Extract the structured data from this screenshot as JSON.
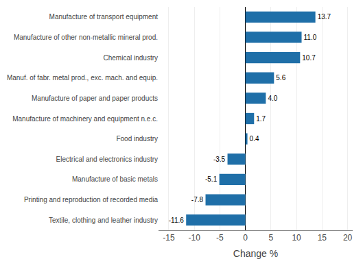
{
  "chart_data": {
    "type": "bar",
    "orientation": "horizontal",
    "categories": [
      "Textile, clothing and leather industry",
      "Printing and reproduction of recorded media",
      "Manufacture of basic metals",
      "Electrical and electronics industry",
      "Food industry",
      "Manufacture of machinery and equipment n.e.c.",
      "Manufacture of paper and paper products",
      "Manuf. of fabr. metal prod., exc. mach. and equip.",
      "Chemical industry",
      "Manufacture of other non-metallic mineral prod.",
      "Manufacture of transport equipment"
    ],
    "values": [
      -11.6,
      -7.8,
      -5.1,
      -3.5,
      0.4,
      1.7,
      4.0,
      5.6,
      10.7,
      11.0,
      13.7
    ],
    "value_labels": [
      "-11.6",
      "-7.8",
      "-5.1",
      "-3.5",
      "0.4",
      "1.7",
      "4.0",
      "5.6",
      "10.7",
      "11.0",
      "13.7"
    ],
    "color": "#1f6fa8",
    "xlabel": "Change %",
    "xlim": [
      -17,
      21
    ],
    "xticks": [
      -15,
      -10,
      -5,
      0,
      5,
      10,
      15,
      20
    ],
    "grid": true,
    "data_labels": true
  }
}
